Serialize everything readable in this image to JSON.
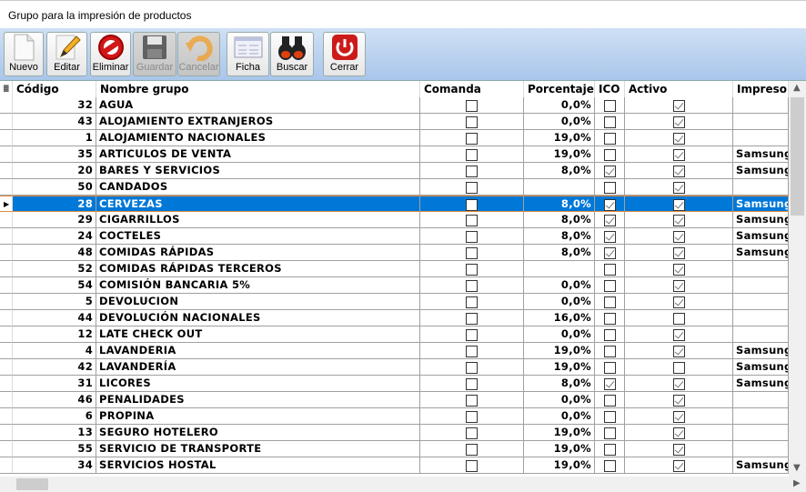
{
  "window": {
    "title": "Grupo para la impresión de productos"
  },
  "toolbar": [
    {
      "label": "Nuevo",
      "icon": "new-document-icon",
      "enabled": true
    },
    {
      "label": "Editar",
      "icon": "pencil-icon",
      "enabled": true
    },
    {
      "label": "Eliminar",
      "icon": "delete-icon",
      "enabled": true
    },
    {
      "label": "Guardar",
      "icon": "floppy-disk-icon",
      "enabled": false
    },
    {
      "label": "Cancelar",
      "icon": "undo-arrow-icon",
      "enabled": false
    },
    {
      "label": "Ficha",
      "icon": "form-icon",
      "enabled": true
    },
    {
      "label": "Buscar",
      "icon": "binoculars-icon",
      "enabled": true
    },
    {
      "label": "Cerrar",
      "icon": "power-icon",
      "enabled": true
    }
  ],
  "columns": [
    "Código",
    "Nombre grupo",
    "Comanda",
    "Porcentaje",
    "ICO",
    "Activo",
    "Impresora"
  ],
  "selected_code": "28",
  "rows": [
    {
      "codigo": "32",
      "nombre": "AGUA",
      "comanda": false,
      "porcentaje": "0,0%",
      "ico": false,
      "activo": true,
      "impresora": ""
    },
    {
      "codigo": "43",
      "nombre": "ALOJAMIENTO EXTRANJEROS",
      "comanda": false,
      "porcentaje": "0,0%",
      "ico": false,
      "activo": true,
      "impresora": ""
    },
    {
      "codigo": "1",
      "nombre": "ALOJAMIENTO NACIONALES",
      "comanda": false,
      "porcentaje": "19,0%",
      "ico": false,
      "activo": true,
      "impresora": ""
    },
    {
      "codigo": "35",
      "nombre": "ARTICULOS DE VENTA",
      "comanda": false,
      "porcentaje": "19,0%",
      "ico": false,
      "activo": true,
      "impresora": "Samsung I"
    },
    {
      "codigo": "20",
      "nombre": "BARES Y SERVICIOS",
      "comanda": false,
      "porcentaje": "8,0%",
      "ico": true,
      "activo": true,
      "impresora": "Samsung I"
    },
    {
      "codigo": "50",
      "nombre": "CANDADOS",
      "comanda": false,
      "porcentaje": "",
      "ico": false,
      "activo": true,
      "impresora": ""
    },
    {
      "codigo": "28",
      "nombre": "CERVEZAS",
      "comanda": false,
      "porcentaje": "8,0%",
      "ico": true,
      "activo": true,
      "impresora": "Samsung I"
    },
    {
      "codigo": "29",
      "nombre": "CIGARRILLOS",
      "comanda": false,
      "porcentaje": "8,0%",
      "ico": true,
      "activo": true,
      "impresora": "Samsung I"
    },
    {
      "codigo": "24",
      "nombre": "COCTELES",
      "comanda": false,
      "porcentaje": "8,0%",
      "ico": true,
      "activo": true,
      "impresora": "Samsung I"
    },
    {
      "codigo": "48",
      "nombre": "COMIDAS RÁPIDAS",
      "comanda": false,
      "porcentaje": "8,0%",
      "ico": true,
      "activo": true,
      "impresora": "Samsung I"
    },
    {
      "codigo": "52",
      "nombre": "COMIDAS RÁPIDAS TERCEROS",
      "comanda": false,
      "porcentaje": "",
      "ico": false,
      "activo": true,
      "impresora": ""
    },
    {
      "codigo": "54",
      "nombre": "COMISIÓN BANCARIA 5%",
      "comanda": false,
      "porcentaje": "0,0%",
      "ico": false,
      "activo": true,
      "impresora": ""
    },
    {
      "codigo": "5",
      "nombre": "DEVOLUCION",
      "comanda": false,
      "porcentaje": "0,0%",
      "ico": false,
      "activo": true,
      "impresora": ""
    },
    {
      "codigo": "44",
      "nombre": "DEVOLUCIÓN NACIONALES",
      "comanda": false,
      "porcentaje": "16,0%",
      "ico": false,
      "activo": false,
      "impresora": ""
    },
    {
      "codigo": "12",
      "nombre": "LATE CHECK OUT",
      "comanda": false,
      "porcentaje": "0,0%",
      "ico": false,
      "activo": true,
      "impresora": ""
    },
    {
      "codigo": "4",
      "nombre": "LAVANDERIA",
      "comanda": false,
      "porcentaje": "19,0%",
      "ico": false,
      "activo": true,
      "impresora": "Samsung I"
    },
    {
      "codigo": "42",
      "nombre": "LAVANDERÍA",
      "comanda": false,
      "porcentaje": "19,0%",
      "ico": false,
      "activo": false,
      "impresora": "Samsung I"
    },
    {
      "codigo": "31",
      "nombre": "LICORES",
      "comanda": false,
      "porcentaje": "8,0%",
      "ico": true,
      "activo": true,
      "impresora": "Samsung I"
    },
    {
      "codigo": "46",
      "nombre": "PENALIDADES",
      "comanda": false,
      "porcentaje": "0,0%",
      "ico": false,
      "activo": true,
      "impresora": ""
    },
    {
      "codigo": "6",
      "nombre": "PROPINA",
      "comanda": false,
      "porcentaje": "0,0%",
      "ico": false,
      "activo": true,
      "impresora": ""
    },
    {
      "codigo": "13",
      "nombre": "SEGURO HOTELERO",
      "comanda": false,
      "porcentaje": "19,0%",
      "ico": false,
      "activo": true,
      "impresora": ""
    },
    {
      "codigo": "55",
      "nombre": "SERVICIO DE TRANSPORTE",
      "comanda": false,
      "porcentaje": "19,0%",
      "ico": false,
      "activo": true,
      "impresora": ""
    },
    {
      "codigo": "34",
      "nombre": "SERVICIOS HOSTAL",
      "comanda": false,
      "porcentaje": "19,0%",
      "ico": false,
      "activo": true,
      "impresora": "Samsung I"
    }
  ]
}
